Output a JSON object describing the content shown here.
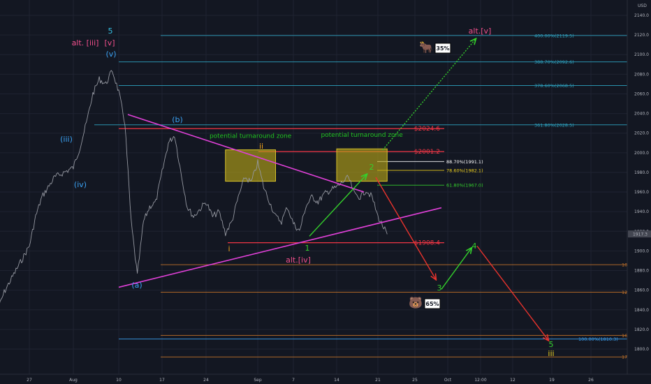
{
  "chart_data": {
    "type": "line",
    "title": "",
    "currency": "USD",
    "y_range": [
      1790,
      2160
    ],
    "y_ticks": [
      1800,
      1820,
      1840,
      1860,
      1880,
      1900,
      1920,
      1940,
      1960,
      1980,
      2000,
      2020,
      2040,
      2060,
      2080,
      2100,
      2120,
      2140
    ],
    "x_ticks": [
      {
        "label": "27",
        "date": "2020-07-27"
      },
      {
        "label": "Aug",
        "date": "2020-08-03"
      },
      {
        "label": "10",
        "date": "2020-08-10"
      },
      {
        "label": "17",
        "date": "2020-08-17"
      },
      {
        "label": "24",
        "date": "2020-08-24"
      },
      {
        "label": "Sep",
        "date": "2020-09-01"
      },
      {
        "label": "7",
        "date": "2020-09-07"
      },
      {
        "label": "14",
        "date": "2020-09-14"
      },
      {
        "label": "21",
        "date": "2020-09-21"
      },
      {
        "label": "25",
        "date": "2020-09-25"
      },
      {
        "label": "Oct",
        "date": "2020-10-01"
      },
      {
        "label": "12:00",
        "date": "2020-10-04"
      },
      {
        "label": "12",
        "date": "2020-10-12"
      },
      {
        "label": "19",
        "date": "2020-10-19"
      },
      {
        "label": "26",
        "date": "2020-10-26"
      }
    ],
    "last_price": "1917.3",
    "price_series": [
      {
        "x": "2020-07-22",
        "y": 1840
      },
      {
        "x": "2020-07-23",
        "y": 1858
      },
      {
        "x": "2020-07-24",
        "y": 1870
      },
      {
        "x": "2020-07-27",
        "y": 1905
      },
      {
        "x": "2020-07-28",
        "y": 1935
      },
      {
        "x": "2020-07-29",
        "y": 1955
      },
      {
        "x": "2020-07-30",
        "y": 1965
      },
      {
        "x": "2020-07-31",
        "y": 1975
      },
      {
        "x": "2020-08-03",
        "y": 1985
      },
      {
        "x": "2020-08-04",
        "y": 2005
      },
      {
        "x": "2020-08-05",
        "y": 2030
      },
      {
        "x": "2020-08-06",
        "y": 2060
      },
      {
        "x": "2020-08-07",
        "y": 2075
      },
      {
        "x": "2020-08-08",
        "y": 2070
      },
      {
        "x": "2020-08-09",
        "y": 2084
      },
      {
        "x": "2020-08-10",
        "y": 2062
      },
      {
        "x": "2020-08-11",
        "y": 2030
      },
      {
        "x": "2020-08-12",
        "y": 1930
      },
      {
        "x": "2020-08-13",
        "y": 1875
      },
      {
        "x": "2020-08-14",
        "y": 1930
      },
      {
        "x": "2020-08-15",
        "y": 1945
      },
      {
        "x": "2020-08-16",
        "y": 1950
      },
      {
        "x": "2020-08-17",
        "y": 1980
      },
      {
        "x": "2020-08-18",
        "y": 2010
      },
      {
        "x": "2020-08-19",
        "y": 2018
      },
      {
        "x": "2020-08-20",
        "y": 1980
      },
      {
        "x": "2020-08-21",
        "y": 1945
      },
      {
        "x": "2020-08-22",
        "y": 1935
      },
      {
        "x": "2020-08-24",
        "y": 1950
      },
      {
        "x": "2020-08-25",
        "y": 1935
      },
      {
        "x": "2020-08-26",
        "y": 1940
      },
      {
        "x": "2020-08-27",
        "y": 1918
      },
      {
        "x": "2020-08-28",
        "y": 1930
      },
      {
        "x": "2020-08-29",
        "y": 1955
      },
      {
        "x": "2020-08-30",
        "y": 1975
      },
      {
        "x": "2020-08-31",
        "y": 1970
      },
      {
        "x": "2020-09-01",
        "y": 1990
      },
      {
        "x": "2020-09-02",
        "y": 1965
      },
      {
        "x": "2020-09-03",
        "y": 1950
      },
      {
        "x": "2020-09-04",
        "y": 1935
      },
      {
        "x": "2020-09-05",
        "y": 1930
      },
      {
        "x": "2020-09-06",
        "y": 1945
      },
      {
        "x": "2020-09-07",
        "y": 1928
      },
      {
        "x": "2020-09-08",
        "y": 1920
      },
      {
        "x": "2020-09-09",
        "y": 1945
      },
      {
        "x": "2020-09-10",
        "y": 1955
      },
      {
        "x": "2020-09-11",
        "y": 1950
      },
      {
        "x": "2020-09-12",
        "y": 1958
      },
      {
        "x": "2020-09-13",
        "y": 1962
      },
      {
        "x": "2020-09-14",
        "y": 1965
      },
      {
        "x": "2020-09-15",
        "y": 1970
      },
      {
        "x": "2020-09-16",
        "y": 1975
      },
      {
        "x": "2020-09-17",
        "y": 1958
      },
      {
        "x": "2020-09-18",
        "y": 1955
      },
      {
        "x": "2020-09-19",
        "y": 1962
      },
      {
        "x": "2020-09-20",
        "y": 1955
      },
      {
        "x": "2020-09-21",
        "y": 1935
      },
      {
        "x": "2020-09-22",
        "y": 1917
      }
    ],
    "price_series_color": "#9598a1"
  },
  "colors": {
    "background": "#131722",
    "fib_blue": "#2fa8c6",
    "fib_red": "#f23645",
    "fib_orange": "#c9762a",
    "trendline": "#e040d8",
    "zone_fill": "#b9a817",
    "green": "#34d02c",
    "red_arrow": "#e8332d",
    "wave_blue": "#3ba3f5",
    "wave_pink": "#f14f8c",
    "wave_orange": "#f2a31b",
    "wave_yellow": "#f0d21c",
    "wave_cyan": "#36c3e6"
  },
  "fib_levels": [
    {
      "label": "400.00%(2119.5)",
      "price": 2119.5,
      "color": "#2fa8c6"
    },
    {
      "label": "388.70%(2092.6)",
      "price": 2092.6,
      "color": "#2fa8c6"
    },
    {
      "label": "378.60%(2068.5)",
      "price": 2068.5,
      "color": "#2fa8c6"
    },
    {
      "label": "361.80%(2028.5)",
      "price": 2028.5,
      "color": "#2fa8c6"
    },
    {
      "label": "88.70%(1991.1)",
      "price": 1991.1,
      "color": "#ffffff"
    },
    {
      "label": "78.60%(1982.1)",
      "price": 1982.1,
      "color": "#f0d21c"
    },
    {
      "label": "61.80%(1967.0)",
      "price": 1967.0,
      "color": "#34d02c"
    },
    {
      "label": "100.0",
      "price": 1886,
      "color": "#c9762a"
    },
    {
      "label": "123.6",
      "price": 1858,
      "color": "#c9762a"
    },
    {
      "label": "100.00%(1810.3)",
      "price": 1810.3,
      "color": "#3ba3f5"
    },
    {
      "label": "161.8",
      "price": 1814,
      "color": "#c9762a"
    },
    {
      "label": "178.6",
      "price": 1792,
      "color": "#c9762a"
    }
  ],
  "price_tags": [
    {
      "text": "$2024.6",
      "price": 2024.6
    },
    {
      "text": "$2001.2",
      "price": 2001.2
    },
    {
      "text": "$1908.4",
      "price": 1908.4
    }
  ],
  "zones": [
    {
      "label": "potential turnaround zone",
      "x0": "2020-08-27",
      "x1": "2020-09-04",
      "y0": 2003,
      "y1": 1971
    },
    {
      "label": "potential turnaround zone",
      "x0": "2020-09-14",
      "x1": "2020-09-22",
      "y0": 2004,
      "y1": 1971
    }
  ],
  "wave_labels": [
    {
      "text": "5",
      "color": "#36c3e6"
    },
    {
      "text": "alt. [iii]",
      "color": "#f14f8c"
    },
    {
      "text": "[v]",
      "color": "#f14f8c"
    },
    {
      "text": "(v)",
      "color": "#3ba3f5"
    },
    {
      "text": "(iii)",
      "color": "#3ba3f5"
    },
    {
      "text": "(iv)",
      "color": "#3ba3f5"
    },
    {
      "text": "(a)",
      "color": "#3ba3f5"
    },
    {
      "text": "(b)",
      "color": "#3ba3f5"
    },
    {
      "text": "ii",
      "color": "#f2a31b"
    },
    {
      "text": "i",
      "color": "#f2a31b"
    },
    {
      "text": "1",
      "color": "#34d02c"
    },
    {
      "text": "2",
      "color": "#34d02c"
    },
    {
      "text": "alt.[iv]",
      "color": "#f14f8c"
    },
    {
      "text": "alt.[v]",
      "color": "#f14f8c"
    },
    {
      "text": "3",
      "color": "#34d02c"
    },
    {
      "text": "4",
      "color": "#34d02c"
    },
    {
      "text": "5",
      "color": "#34d02c"
    },
    {
      "text": "iii",
      "color": "#f0d21c"
    }
  ],
  "bull_badge": {
    "icon": "bull-icon",
    "text": "35%"
  },
  "bear_badge": {
    "icon": "bear-icon",
    "text": "65%"
  }
}
